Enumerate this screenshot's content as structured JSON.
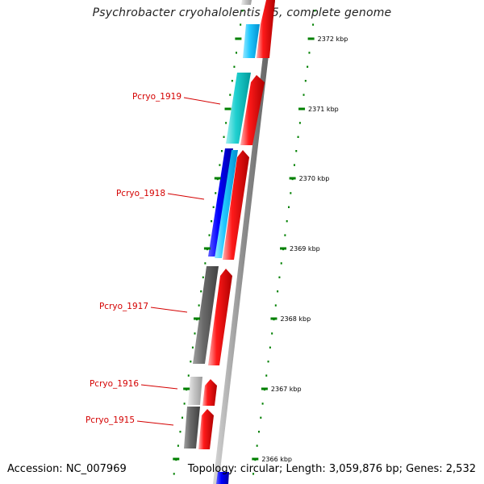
{
  "title": "Psychrobacter cryohalolentis K5, complete genome",
  "footer": {
    "accession": "Accession: NC_007969",
    "info": "Topology: circular; Length: 3,059,876 bp; Genes: 2,532"
  },
  "colors": {
    "forward_feature": "#ff0000",
    "reverse_blue": "#0000ff",
    "reverse_cyan": "#00c8ff",
    "reverse_teal": "#00d0d0",
    "reverse_gray": "#666666",
    "reverse_lightgray": "#c8c8c8",
    "gene_label": "#d40000",
    "tick": "#008000",
    "backbone": "#8c8c8c"
  },
  "scale": {
    "ticks": [
      {
        "kbp": 2372,
        "label": "2372 kbp"
      },
      {
        "kbp": 2371,
        "label": "2371 kbp"
      },
      {
        "kbp": 2370,
        "label": "2370 kbp"
      },
      {
        "kbp": 2369,
        "label": "2369 kbp"
      },
      {
        "kbp": 2368,
        "label": "2368 kbp"
      },
      {
        "kbp": 2367,
        "label": "2367 kbp"
      },
      {
        "kbp": 2366,
        "label": "2366 kbp"
      }
    ]
  },
  "genes": [
    {
      "label": "Pcryo_1919"
    },
    {
      "label": "Pcryo_1918"
    },
    {
      "label": "Pcryo_1917"
    },
    {
      "label": "Pcryo_1916"
    },
    {
      "label": "Pcryo_1915"
    }
  ]
}
